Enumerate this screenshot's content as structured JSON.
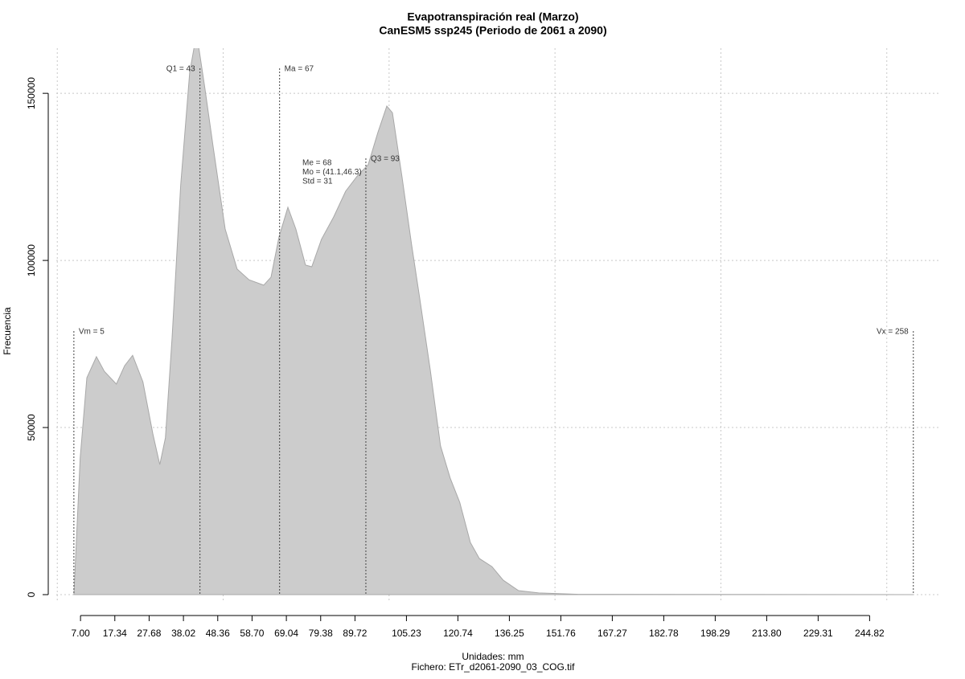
{
  "chart_data": {
    "type": "area",
    "title": "Evapotranspiración real (Marzo)",
    "subtitle": "CanESM5 ssp245 (Periodo de 2061 a 2090)",
    "xlabel": "Unidades: mm",
    "ylabel": "Frecuencia",
    "caption": "Fichero: ETr_d2061-2090_03_COG.tif",
    "color": "#cccccc",
    "x": [
      5,
      6.9,
      8.9,
      11.8,
      14.2,
      17.8,
      20.3,
      22.7,
      25.8,
      28.8,
      30.9,
      32.6,
      34.6,
      37.2,
      39.9,
      42,
      44.5,
      46.9,
      50.6,
      54.2,
      57.8,
      62.2,
      64.4,
      66.8,
      69.5,
      71.9,
      74.8,
      76.7,
      79.6,
      83.3,
      86.9,
      90.6,
      93.7,
      96.6,
      99.3,
      101,
      103.9,
      106.8,
      109.2,
      112.4,
      115.5,
      118.4,
      121.3,
      124.5,
      127.2,
      131,
      134.4,
      139,
      145.1,
      157.2,
      258
    ],
    "values": [
      0,
      40900,
      64900,
      71200,
      66800,
      63000,
      68500,
      71600,
      63700,
      48100,
      38900,
      46900,
      76900,
      122600,
      156300,
      168000,
      151500,
      134600,
      109400,
      97400,
      94200,
      92600,
      95000,
      107000,
      115900,
      109400,
      98600,
      98100,
      106300,
      113000,
      120700,
      125500,
      128600,
      138200,
      146200,
      144200,
      125000,
      104600,
      88900,
      67300,
      44500,
      34900,
      27600,
      15600,
      10800,
      8400,
      4300,
      1200,
      500,
      100,
      0
    ],
    "xlim": [
      -0.3,
      266.3
    ],
    "ylim": [
      0,
      163500
    ],
    "yticks": [
      0,
      50000,
      100000,
      150000
    ],
    "xticks": [
      {
        "value": 7,
        "label": "7.00"
      },
      {
        "value": 17.34,
        "label": "17.34"
      },
      {
        "value": 27.68,
        "label": "27.68"
      },
      {
        "value": 38.02,
        "label": "38.02"
      },
      {
        "value": 48.36,
        "label": "48.36"
      },
      {
        "value": 58.7,
        "label": "58.70"
      },
      {
        "value": 69.04,
        "label": "69.04"
      },
      {
        "value": 79.38,
        "label": "79.38"
      },
      {
        "value": 89.72,
        "label": "89.72"
      },
      105.23,
      120.74,
      136.25,
      151.76,
      167.27,
      182.78,
      198.29,
      {
        "value": 213.8,
        "label": "213.80"
      },
      229.31,
      244.82
    ],
    "xgrid": [
      0,
      50,
      100,
      150,
      200,
      250
    ],
    "grid": true,
    "markers": [
      {
        "label": "Vm = 5",
        "value": 5
      },
      {
        "label": "Q1 = 43",
        "value": 43
      },
      {
        "label": "Ma = 67",
        "value": 67
      },
      {
        "label": "Q3 = 93",
        "value": 93
      },
      {
        "label": "Vx = 258",
        "value": 258
      }
    ],
    "annotations": [
      "Me = 68",
      "Mo = (41.1,46.3)",
      "Std = 31"
    ]
  }
}
